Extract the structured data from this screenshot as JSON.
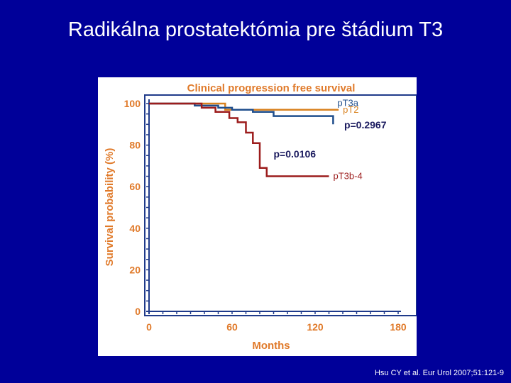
{
  "slide": {
    "title": "Radikálna prostatektómia pre štádium T3",
    "citation": "Hsu CY et al. Eur Urol 2007;51:121-9"
  },
  "colors": {
    "background": "#000099",
    "panel": "#ffffff",
    "axis": "#1f3a8a",
    "label": "#e07a2a",
    "pT2": "#d9821f",
    "pT3a": "#1f4e8c",
    "pT3b4": "#9c1c1c"
  },
  "chart_data": {
    "type": "line",
    "step": true,
    "title": "Clinical progression free survival",
    "xlabel": "Months",
    "ylabel": "Survival probability (%)",
    "xlim": [
      0,
      180
    ],
    "ylim": [
      0,
      100
    ],
    "xticks": [
      0,
      60,
      120,
      180
    ],
    "yticks": [
      0,
      20,
      40,
      60,
      80,
      100
    ],
    "grid": false,
    "series": [
      {
        "name": "pT2",
        "color": "#d9821f",
        "x": [
          0,
          55,
          55,
          137
        ],
        "y": [
          100,
          100,
          97,
          97
        ]
      },
      {
        "name": "pT3a",
        "color": "#1f4e8c",
        "x": [
          0,
          33,
          33,
          50,
          50,
          60,
          60,
          75,
          75,
          90,
          90,
          133,
          133
        ],
        "y": [
          100,
          100,
          99,
          99,
          98,
          98,
          97,
          97,
          96,
          96,
          94,
          94,
          90
        ]
      },
      {
        "name": "pT3b-4",
        "color": "#9c1c1c",
        "x": [
          0,
          38,
          38,
          48,
          48,
          58,
          58,
          64,
          64,
          70,
          70,
          75,
          75,
          80,
          80,
          85,
          85,
          130
        ],
        "y": [
          100,
          100,
          98,
          98,
          96,
          96,
          93,
          93,
          91,
          91,
          86,
          86,
          81,
          81,
          69,
          69,
          65,
          65
        ]
      }
    ],
    "annotations": [
      {
        "text": "p=0.2967",
        "x": 141,
        "y": 88
      },
      {
        "text": "p=0.0106",
        "x": 90,
        "y": 74
      }
    ]
  }
}
